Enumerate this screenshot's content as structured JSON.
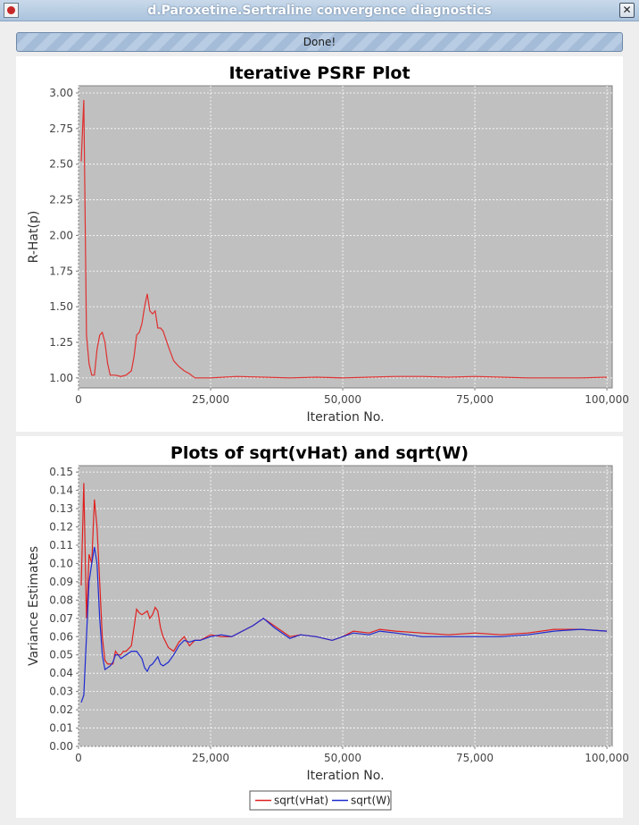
{
  "window": {
    "title": "d.Paroxetine.Sertraline convergence diagnostics",
    "close_glyph": "✕"
  },
  "toolbar": {
    "done_label": "Done!"
  },
  "chart_data": [
    {
      "type": "line",
      "title": "Iterative PSRF Plot",
      "xlabel": "Iteration No.",
      "ylabel": "R-Hat(p)",
      "xlim": [
        0,
        101000
      ],
      "ylim": [
        0.93,
        3.05
      ],
      "xticks": [
        0,
        25000,
        50000,
        75000,
        100000
      ],
      "xtick_labels": [
        "0",
        "25,000",
        "50,000",
        "75,000",
        "100,000"
      ],
      "yticks": [
        1.0,
        1.25,
        1.5,
        1.75,
        2.0,
        2.25,
        2.5,
        2.75,
        3.0
      ],
      "ytick_labels": [
        "1.00",
        "1.25",
        "1.50",
        "1.75",
        "2.00",
        "2.25",
        "2.50",
        "2.75",
        "3.00"
      ],
      "grid": true,
      "series": [
        {
          "color": "#e03030",
          "x": [
            500,
            1000,
            1500,
            2000,
            2500,
            3000,
            3500,
            4000,
            4500,
            5000,
            5500,
            6000,
            7000,
            8000,
            9000,
            10000,
            10500,
            11000,
            11500,
            12000,
            12500,
            13000,
            13500,
            14000,
            14500,
            15000,
            15500,
            16000,
            17000,
            18000,
            19000,
            20000,
            21000,
            22000,
            25000,
            30000,
            35000,
            40000,
            45000,
            50000,
            55000,
            60000,
            65000,
            70000,
            75000,
            80000,
            85000,
            90000,
            95000,
            100000
          ],
          "y": [
            2.52,
            2.95,
            1.3,
            1.1,
            1.02,
            1.02,
            1.2,
            1.3,
            1.32,
            1.25,
            1.1,
            1.02,
            1.02,
            1.01,
            1.02,
            1.05,
            1.15,
            1.3,
            1.32,
            1.38,
            1.5,
            1.59,
            1.47,
            1.45,
            1.47,
            1.35,
            1.35,
            1.33,
            1.22,
            1.12,
            1.08,
            1.05,
            1.03,
            1.0,
            1.0,
            1.01,
            1.005,
            1.0,
            1.005,
            1.0,
            1.005,
            1.01,
            1.01,
            1.005,
            1.01,
            1.005,
            1.0,
            1.0,
            1.0,
            1.005
          ]
        }
      ]
    },
    {
      "type": "line",
      "title": "Plots of sqrt(vHat) and sqrt(W)",
      "xlabel": "Iteration No.",
      "ylabel": "Variance Estimates",
      "xlim": [
        0,
        101000
      ],
      "ylim": [
        0,
        0.1535
      ],
      "xticks": [
        0,
        25000,
        50000,
        75000,
        100000
      ],
      "xtick_labels": [
        "0",
        "25,000",
        "50,000",
        "75,000",
        "100,000"
      ],
      "yticks": [
        0,
        0.01,
        0.02,
        0.03,
        0.04,
        0.05,
        0.06,
        0.07,
        0.08,
        0.09,
        0.1,
        0.11,
        0.12,
        0.13,
        0.14,
        0.15
      ],
      "ytick_labels": [
        "0.00",
        "0.01",
        "0.02",
        "0.03",
        "0.04",
        "0.05",
        "0.06",
        "0.07",
        "0.08",
        "0.09",
        "0.10",
        "0.11",
        "0.12",
        "0.13",
        "0.14",
        "0.15"
      ],
      "grid": true,
      "legend_position": "bottom-center",
      "series": [
        {
          "name": "sqrt(vHat)",
          "color": "#e02020",
          "x": [
            500,
            1000,
            1500,
            2000,
            2500,
            3000,
            3500,
            4000,
            4500,
            5000,
            5500,
            6000,
            6500,
            7000,
            7500,
            8000,
            8500,
            9000,
            10000,
            11000,
            11500,
            12000,
            12500,
            13000,
            13500,
            14000,
            14500,
            15000,
            15500,
            16000,
            17000,
            18000,
            19000,
            20000,
            21000,
            22000,
            23000,
            25000,
            27000,
            29000,
            31000,
            33000,
            35000,
            37000,
            40000,
            42000,
            45000,
            48000,
            50000,
            52000,
            55000,
            57000,
            60000,
            65000,
            70000,
            75000,
            80000,
            85000,
            90000,
            95000,
            100000
          ],
          "y": [
            0.088,
            0.144,
            0.07,
            0.105,
            0.1,
            0.135,
            0.12,
            0.09,
            0.06,
            0.047,
            0.045,
            0.045,
            0.045,
            0.052,
            0.05,
            0.05,
            0.052,
            0.052,
            0.055,
            0.075,
            0.073,
            0.072,
            0.073,
            0.074,
            0.07,
            0.072,
            0.076,
            0.074,
            0.065,
            0.06,
            0.054,
            0.052,
            0.057,
            0.06,
            0.055,
            0.058,
            0.058,
            0.061,
            0.06,
            0.06,
            0.063,
            0.066,
            0.07,
            0.066,
            0.06,
            0.061,
            0.06,
            0.058,
            0.06,
            0.063,
            0.062,
            0.064,
            0.063,
            0.062,
            0.061,
            0.062,
            0.061,
            0.062,
            0.064,
            0.064,
            0.063
          ]
        },
        {
          "name": "sqrt(W)",
          "color": "#1f2ad0",
          "x": [
            500,
            1000,
            1500,
            2000,
            2500,
            3000,
            3500,
            4000,
            4500,
            5000,
            5500,
            6000,
            6500,
            7000,
            7500,
            8000,
            8500,
            9000,
            10000,
            11000,
            11500,
            12000,
            12500,
            13000,
            13500,
            14000,
            14500,
            15000,
            15500,
            16000,
            17000,
            18000,
            19000,
            20000,
            21000,
            22000,
            23000,
            25000,
            27000,
            29000,
            31000,
            33000,
            35000,
            37000,
            40000,
            42000,
            45000,
            48000,
            50000,
            52000,
            55000,
            57000,
            60000,
            65000,
            70000,
            75000,
            80000,
            85000,
            90000,
            95000,
            100000
          ],
          "y": [
            0.024,
            0.028,
            0.06,
            0.09,
            0.1,
            0.109,
            0.1,
            0.07,
            0.05,
            0.042,
            0.043,
            0.044,
            0.046,
            0.05,
            0.05,
            0.048,
            0.049,
            0.05,
            0.052,
            0.052,
            0.05,
            0.048,
            0.043,
            0.041,
            0.044,
            0.045,
            0.047,
            0.049,
            0.045,
            0.044,
            0.046,
            0.05,
            0.055,
            0.058,
            0.057,
            0.058,
            0.058,
            0.06,
            0.061,
            0.06,
            0.063,
            0.066,
            0.07,
            0.065,
            0.059,
            0.061,
            0.06,
            0.058,
            0.06,
            0.062,
            0.061,
            0.063,
            0.062,
            0.06,
            0.06,
            0.06,
            0.06,
            0.061,
            0.063,
            0.064,
            0.063
          ]
        }
      ]
    }
  ]
}
